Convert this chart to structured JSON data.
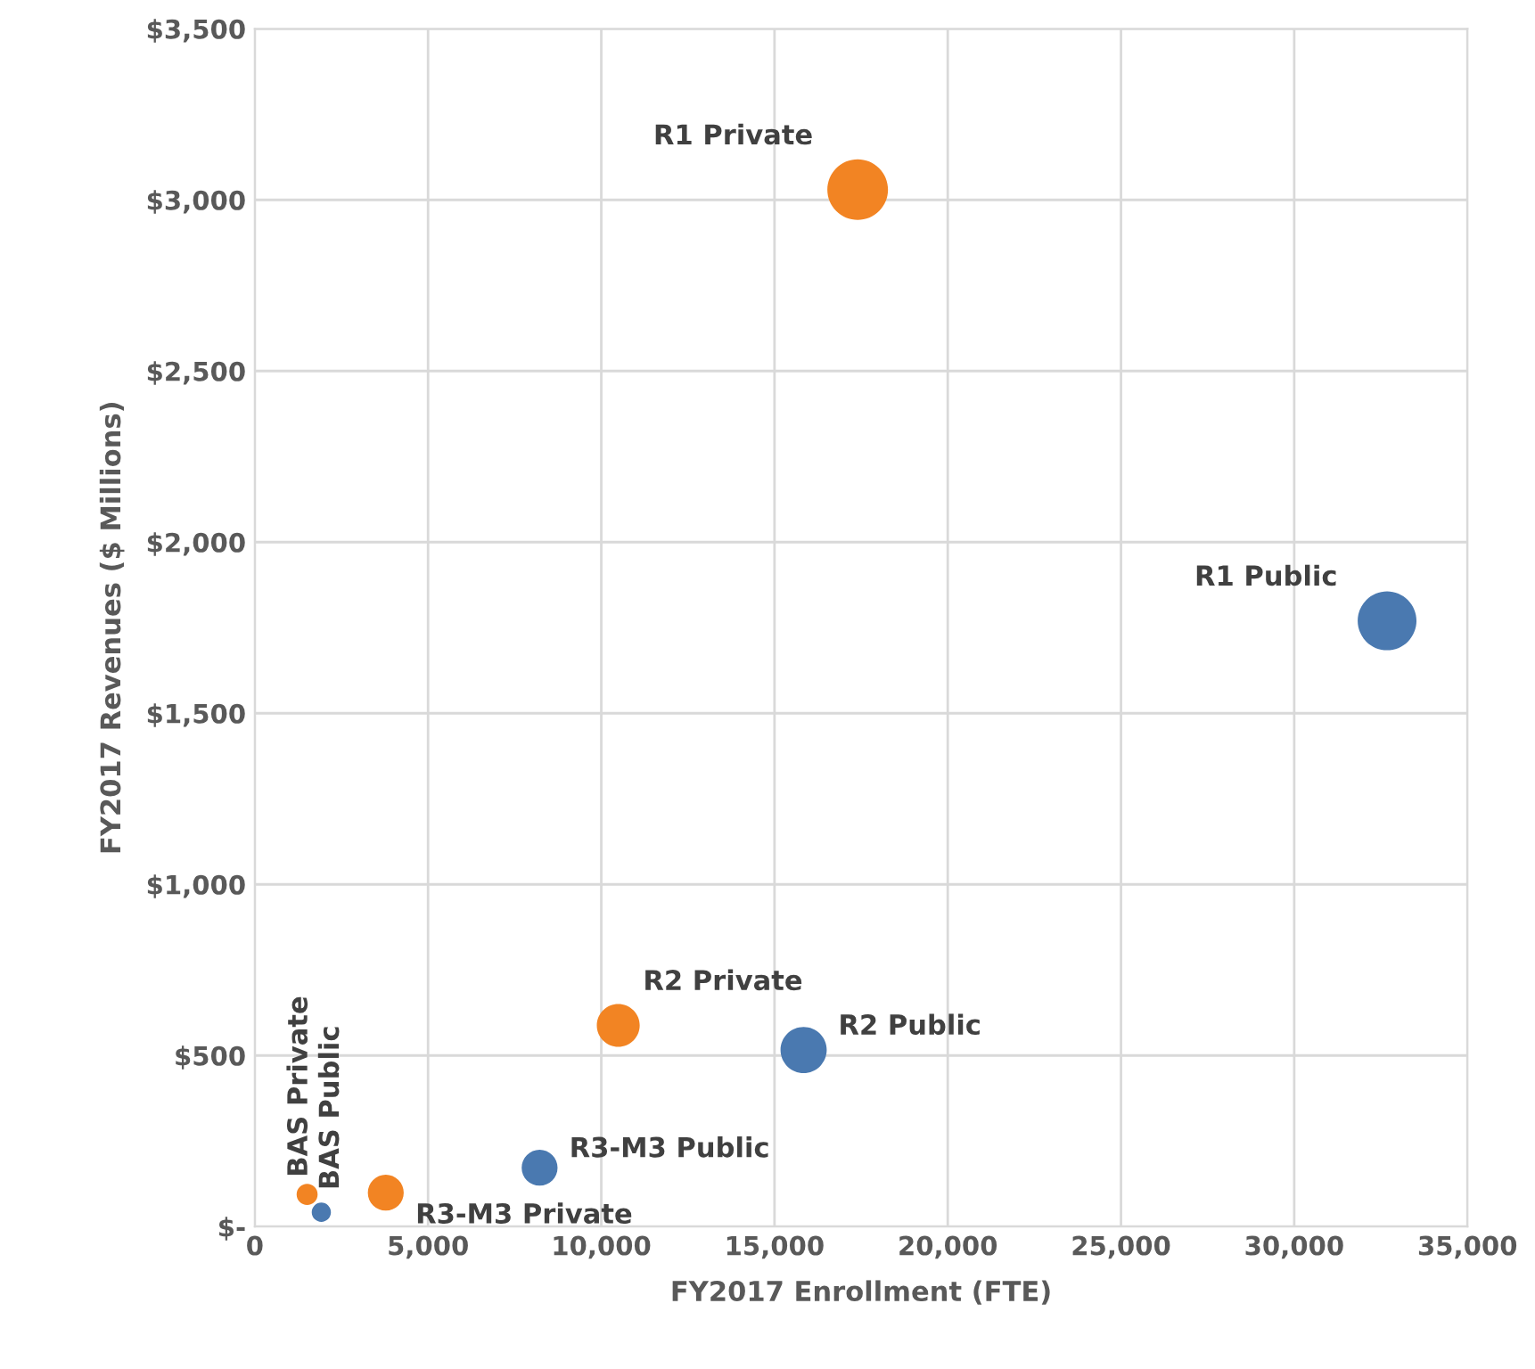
{
  "chart_data": {
    "type": "bubble",
    "xlabel": "FY2017 Enrollment (FTE)",
    "ylabel": "FY2017 Revenues ($ Millions)",
    "series": [
      {
        "color": "#f28423",
        "x": [
          1510,
          3780,
          10490,
          17400
        ],
        "values": [
          94,
          99,
          588,
          3030
        ],
        "sizes": [
          0.12,
          0.35,
          0.5,
          1
        ]
      },
      {
        "color": "#4a79b0",
        "x": [
          1920,
          8220,
          15840,
          32680
        ],
        "values": [
          42,
          172,
          516,
          1770
        ],
        "sizes": [
          0.1,
          0.35,
          0.58,
          0.94
        ]
      }
    ],
    "xlim": [
      0,
      35000
    ],
    "xticks": [
      0,
      {
        "value": 5000,
        "label": "5,000"
      },
      {
        "value": 10000,
        "label": "10,000"
      },
      {
        "value": 15000,
        "label": "15,000"
      },
      {
        "value": 20000,
        "label": "20,000"
      },
      {
        "value": 25000,
        "label": "25,000"
      },
      {
        "value": 30000,
        "label": "30,000"
      },
      {
        "value": 35000,
        "label": "35,000"
      }
    ],
    "ylim": [
      0,
      3500
    ],
    "yticks": [
      {
        "value": 0,
        "label": "$-"
      },
      {
        "value": 500,
        "label": "$500"
      },
      {
        "value": 1000,
        "label": "$1,000"
      },
      {
        "value": 1500,
        "label": "$1,500"
      },
      {
        "value": 2000,
        "label": "$2,000"
      },
      {
        "value": 2500,
        "label": "$2,500"
      },
      {
        "value": 3000,
        "label": "$3,000"
      },
      {
        "value": 3500,
        "label": "$3,500"
      }
    ],
    "grid": true,
    "annotations": [
      {
        "text": "R1 Private",
        "x": 17400,
        "y": 3030
      },
      {
        "text": "R1 Public",
        "x": 32680,
        "y": 1770
      },
      {
        "text": "R2 Private",
        "x": 10490,
        "y": 588
      },
      {
        "text": "R2 Public",
        "x": 15840,
        "y": 516
      },
      {
        "text": "R3-M3 Public",
        "x": 8220,
        "y": 172
      },
      {
        "text": "R3-M3 Private",
        "x": 3780,
        "y": 99
      },
      {
        "text": "BAS Private",
        "x": 1510,
        "y": 94
      },
      {
        "text": "BAS Public",
        "x": 1920,
        "y": 42
      }
    ]
  }
}
